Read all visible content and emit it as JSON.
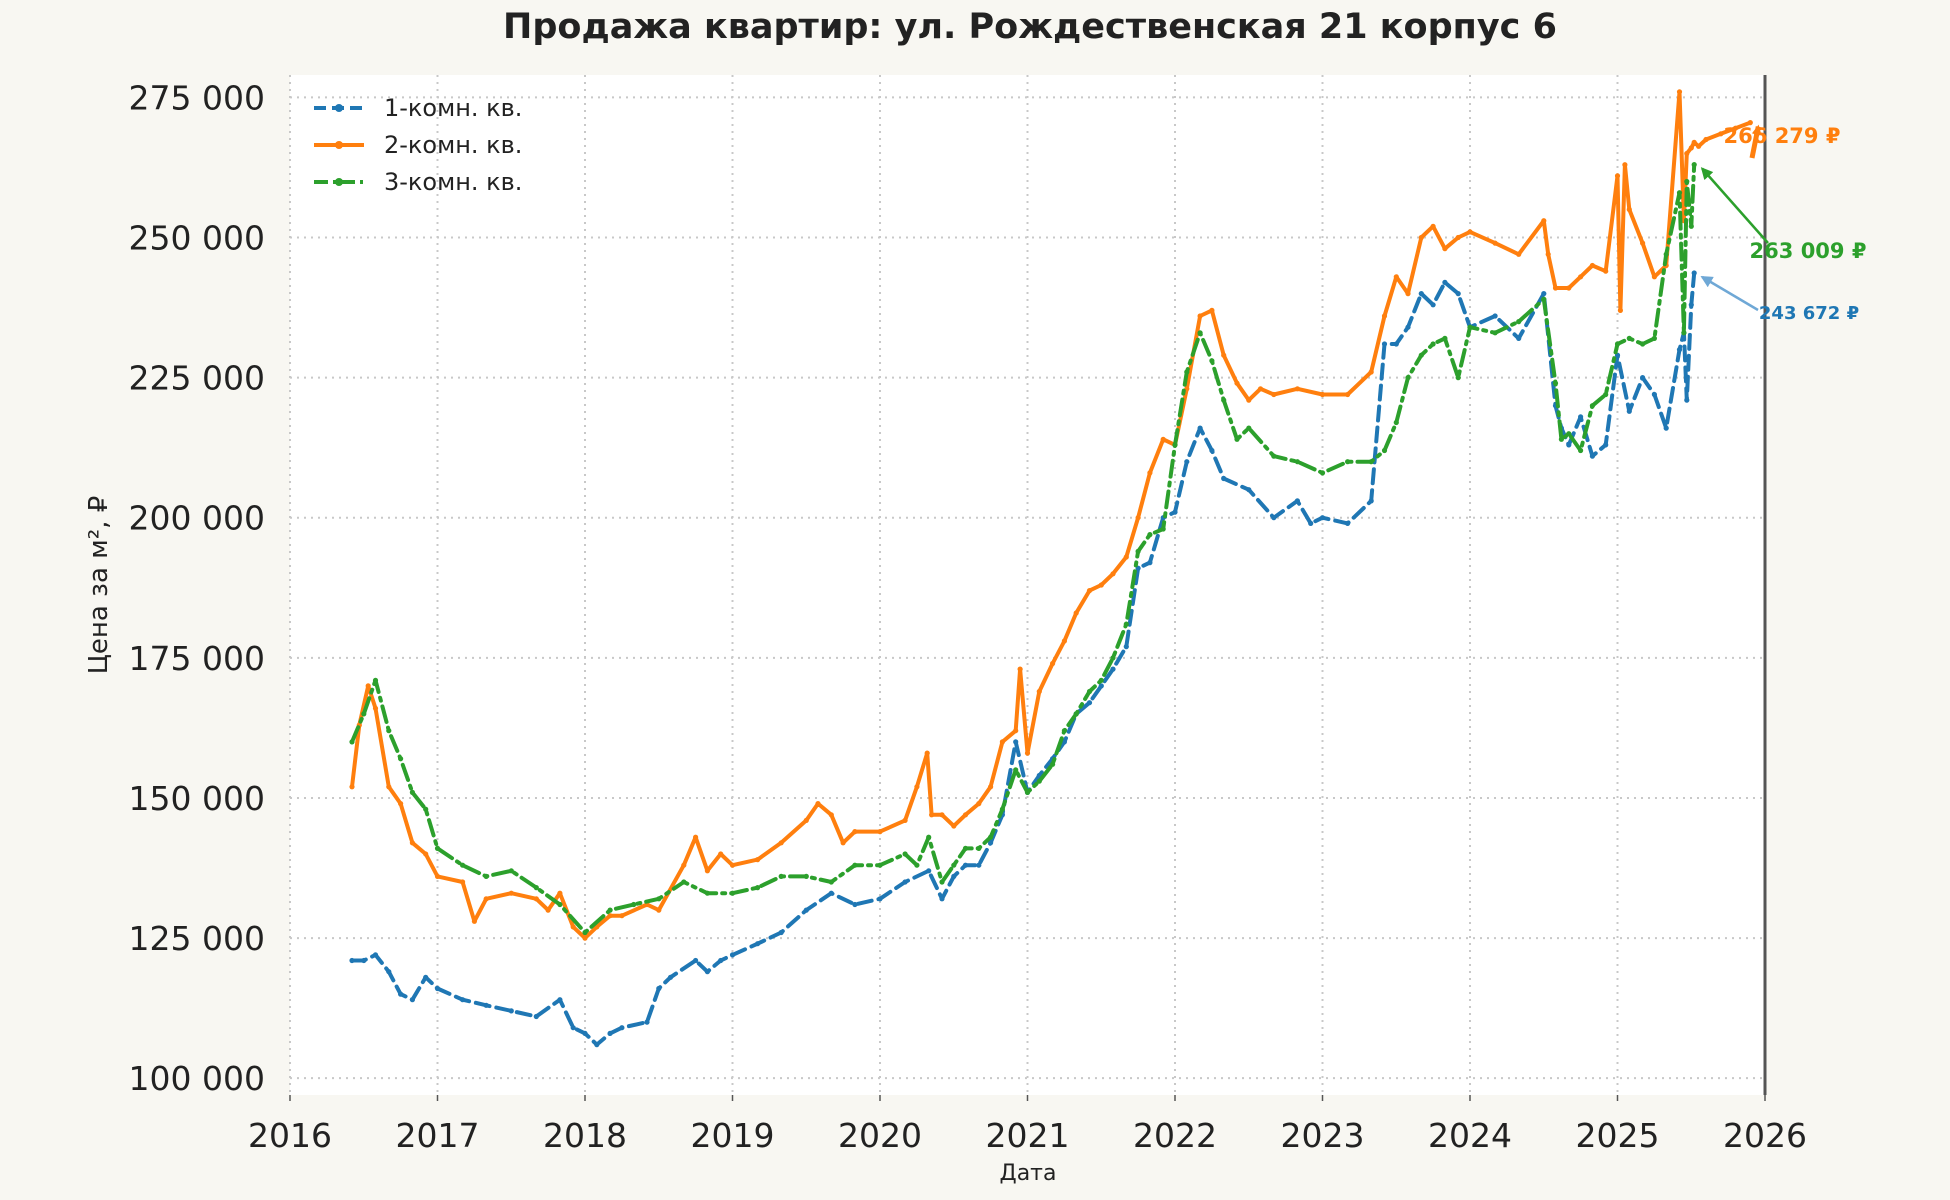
{
  "chart_data": {
    "type": "line",
    "title": "Продажа квартир: ул. Рождественская 21 корпус 6",
    "xlabel": "Дата",
    "ylabel": "Цена за м², ₽",
    "xlim": [
      2016.0,
      2026.0
    ],
    "ylim": [
      97000,
      279000
    ],
    "x_ticks": [
      2016,
      2017,
      2018,
      2019,
      2020,
      2021,
      2022,
      2023,
      2024,
      2025,
      2026
    ],
    "x_tick_labels": [
      "2016",
      "2017",
      "2018",
      "2019",
      "2020",
      "2021",
      "2022",
      "2023",
      "2024",
      "2025",
      "2026"
    ],
    "y_ticks": [
      100000,
      125000,
      150000,
      175000,
      200000,
      225000,
      250000,
      275000
    ],
    "y_tick_labels": [
      "100 000",
      "125 000",
      "150 000",
      "175 000",
      "200 000",
      "225 000",
      "250 000",
      "275 000"
    ],
    "grid": true,
    "legend_position": "top-left",
    "current_date_marker": 2026.0,
    "series": [
      {
        "name": "1-комн. кв.",
        "color": "#1f77b4",
        "style": "dashed",
        "x": [
          2016.42,
          2016.5,
          2016.58,
          2016.67,
          2016.75,
          2016.83,
          2016.92,
          2017.0,
          2017.17,
          2017.33,
          2017.5,
          2017.67,
          2017.83,
          2017.92,
          2018.0,
          2018.08,
          2018.17,
          2018.25,
          2018.42,
          2018.5,
          2018.58,
          2018.75,
          2018.83,
          2018.92,
          2019.0,
          2019.17,
          2019.33,
          2019.5,
          2019.67,
          2019.83,
          2020.0,
          2020.17,
          2020.33,
          2020.42,
          2020.5,
          2020.58,
          2020.67,
          2020.75,
          2020.83,
          2020.92,
          2021.0,
          2021.08,
          2021.17,
          2021.25,
          2021.33,
          2021.42,
          2021.5,
          2021.58,
          2021.67,
          2021.75,
          2021.83,
          2021.92,
          2022.0,
          2022.08,
          2022.17,
          2022.25,
          2022.33,
          2022.5,
          2022.67,
          2022.83,
          2022.92,
          2023.0,
          2023.17,
          2023.33,
          2023.42,
          2023.5,
          2023.58,
          2023.67,
          2023.75,
          2023.83,
          2023.92,
          2024.0,
          2024.17,
          2024.33,
          2024.5,
          2024.58,
          2024.62,
          2024.67,
          2024.75,
          2024.83,
          2024.92,
          2025.0,
          2025.08,
          2025.17,
          2025.25,
          2025.33,
          2025.42,
          2025.45,
          2025.47,
          2025.5,
          2025.52
        ],
        "y": [
          121000,
          121000,
          122000,
          119000,
          115000,
          114000,
          118000,
          116000,
          114000,
          113000,
          112000,
          111000,
          114000,
          109000,
          108000,
          106000,
          108000,
          109000,
          110000,
          116000,
          118000,
          121000,
          119000,
          121000,
          122000,
          124000,
          126000,
          130000,
          133000,
          131000,
          132000,
          135000,
          137000,
          132000,
          136000,
          138000,
          138000,
          142000,
          147000,
          160000,
          151000,
          154000,
          157000,
          160000,
          165000,
          167000,
          170000,
          173000,
          177000,
          191000,
          192000,
          200000,
          201000,
          210000,
          216000,
          212000,
          207000,
          205000,
          200000,
          203000,
          199000,
          200000,
          199000,
          203000,
          231000,
          231000,
          234000,
          240000,
          238000,
          242000,
          240000,
          234000,
          236000,
          232000,
          240000,
          220000,
          216000,
          213000,
          218000,
          211000,
          213000,
          229000,
          219000,
          225000,
          222000,
          216000,
          230000,
          233000,
          221000,
          238000,
          243672
        ]
      },
      {
        "name": "2-комн. кв.",
        "color": "#ff7f0e",
        "style": "solid",
        "x": [
          2016.42,
          2016.47,
          2016.53,
          2016.58,
          2016.67,
          2016.75,
          2016.83,
          2016.92,
          2017.0,
          2017.17,
          2017.25,
          2017.33,
          2017.5,
          2017.67,
          2017.75,
          2017.83,
          2017.92,
          2018.0,
          2018.08,
          2018.17,
          2018.25,
          2018.42,
          2018.5,
          2018.67,
          2018.75,
          2018.83,
          2018.92,
          2019.0,
          2019.17,
          2019.33,
          2019.5,
          2019.58,
          2019.67,
          2019.75,
          2019.83,
          2020.0,
          2020.17,
          2020.25,
          2020.32,
          2020.35,
          2020.42,
          2020.5,
          2020.58,
          2020.67,
          2020.75,
          2020.83,
          2020.92,
          2020.95,
          2021.0,
          2021.08,
          2021.17,
          2021.25,
          2021.33,
          2021.42,
          2021.5,
          2021.58,
          2021.67,
          2021.75,
          2021.83,
          2021.92,
          2022.0,
          2022.08,
          2022.17,
          2022.25,
          2022.33,
          2022.42,
          2022.5,
          2022.58,
          2022.67,
          2022.83,
          2023.0,
          2023.17,
          2023.33,
          2023.42,
          2023.5,
          2023.58,
          2023.67,
          2023.75,
          2023.83,
          2023.92,
          2024.0,
          2024.17,
          2024.33,
          2024.5,
          2024.53,
          2024.58,
          2024.67,
          2024.75,
          2024.83,
          2024.92,
          2025.0,
          2025.02,
          2025.05,
          2025.08,
          2025.17,
          2025.25,
          2025.33,
          2025.42,
          2025.45,
          2025.47,
          2025.5,
          2025.52,
          2025.55,
          2025.6,
          2025.7,
          2025.8,
          2025.9
        ],
        "y": [
          152000,
          163000,
          170000,
          166000,
          152000,
          149000,
          142000,
          140000,
          136000,
          135000,
          128000,
          132000,
          133000,
          132000,
          130000,
          133000,
          127000,
          125000,
          127000,
          129000,
          129000,
          131000,
          130000,
          138000,
          143000,
          137000,
          140000,
          138000,
          139000,
          142000,
          146000,
          149000,
          147000,
          142000,
          144000,
          144000,
          146000,
          152000,
          158000,
          147000,
          147000,
          145000,
          147000,
          149000,
          152000,
          160000,
          162000,
          173000,
          158000,
          169000,
          174000,
          178000,
          183000,
          187000,
          188000,
          190000,
          193000,
          200000,
          208000,
          214000,
          213000,
          223000,
          236000,
          237000,
          229000,
          224000,
          221000,
          223000,
          222000,
          223000,
          222000,
          222000,
          226000,
          236000,
          243000,
          240000,
          250000,
          252000,
          248000,
          250000,
          251000,
          249000,
          247000,
          253000,
          247000,
          241000,
          241000,
          243000,
          245000,
          244000,
          261000,
          237000,
          263000,
          255000,
          249000,
          243000,
          245000,
          276000,
          253000,
          265000,
          266000,
          267000,
          266279,
          267500,
          268500,
          269500,
          270500
        ]
      },
      {
        "name": "3-комн. кв.",
        "color": "#2ca02c",
        "style": "dashdot",
        "x": [
          2016.42,
          2016.5,
          2016.58,
          2016.67,
          2016.75,
          2016.83,
          2016.92,
          2017.0,
          2017.17,
          2017.33,
          2017.5,
          2017.67,
          2017.83,
          2018.0,
          2018.17,
          2018.33,
          2018.5,
          2018.67,
          2018.83,
          2019.0,
          2019.17,
          2019.33,
          2019.5,
          2019.67,
          2019.83,
          2020.0,
          2020.17,
          2020.25,
          2020.33,
          2020.42,
          2020.5,
          2020.58,
          2020.67,
          2020.75,
          2020.83,
          2020.92,
          2021.0,
          2021.08,
          2021.17,
          2021.25,
          2021.33,
          2021.42,
          2021.5,
          2021.58,
          2021.67,
          2021.75,
          2021.83,
          2021.92,
          2022.0,
          2022.08,
          2022.17,
          2022.25,
          2022.33,
          2022.42,
          2022.5,
          2022.67,
          2022.83,
          2023.0,
          2023.17,
          2023.33,
          2023.42,
          2023.5,
          2023.58,
          2023.67,
          2023.75,
          2023.83,
          2023.92,
          2024.0,
          2024.17,
          2024.33,
          2024.5,
          2024.58,
          2024.62,
          2024.67,
          2024.75,
          2024.83,
          2024.92,
          2025.0,
          2025.08,
          2025.17,
          2025.25,
          2025.33,
          2025.42,
          2025.45,
          2025.47,
          2025.5,
          2025.52
        ],
        "y": [
          160000,
          165000,
          171000,
          162000,
          157000,
          151000,
          148000,
          141000,
          138000,
          136000,
          137000,
          134000,
          131000,
          126000,
          130000,
          131000,
          132000,
          135000,
          133000,
          133000,
          134000,
          136000,
          136000,
          135000,
          138000,
          138000,
          140000,
          138000,
          143000,
          135000,
          138000,
          141000,
          141000,
          143000,
          148000,
          155000,
          151000,
          153000,
          156000,
          162000,
          165000,
          169000,
          171000,
          175000,
          181000,
          194000,
          197000,
          198000,
          213000,
          226000,
          233000,
          228000,
          221000,
          214000,
          216000,
          211000,
          210000,
          208000,
          210000,
          210000,
          212000,
          217000,
          225000,
          229000,
          231000,
          232000,
          225000,
          234000,
          233000,
          235000,
          239000,
          224000,
          214000,
          215000,
          212000,
          220000,
          222000,
          231000,
          232000,
          231000,
          232000,
          247000,
          258000,
          233000,
          260000,
          252000,
          263009
        ]
      }
    ],
    "annotations": [
      {
        "text": "266 279 ₽",
        "series": "2-комн. кв.",
        "color": "#ff7f0e"
      },
      {
        "text": "263 009 ₽",
        "series": "3-комн. кв.",
        "color": "#2ca02c"
      },
      {
        "text": "243 672 ₽",
        "series": "1-комн. кв.",
        "color": "#1f77b4"
      }
    ]
  }
}
